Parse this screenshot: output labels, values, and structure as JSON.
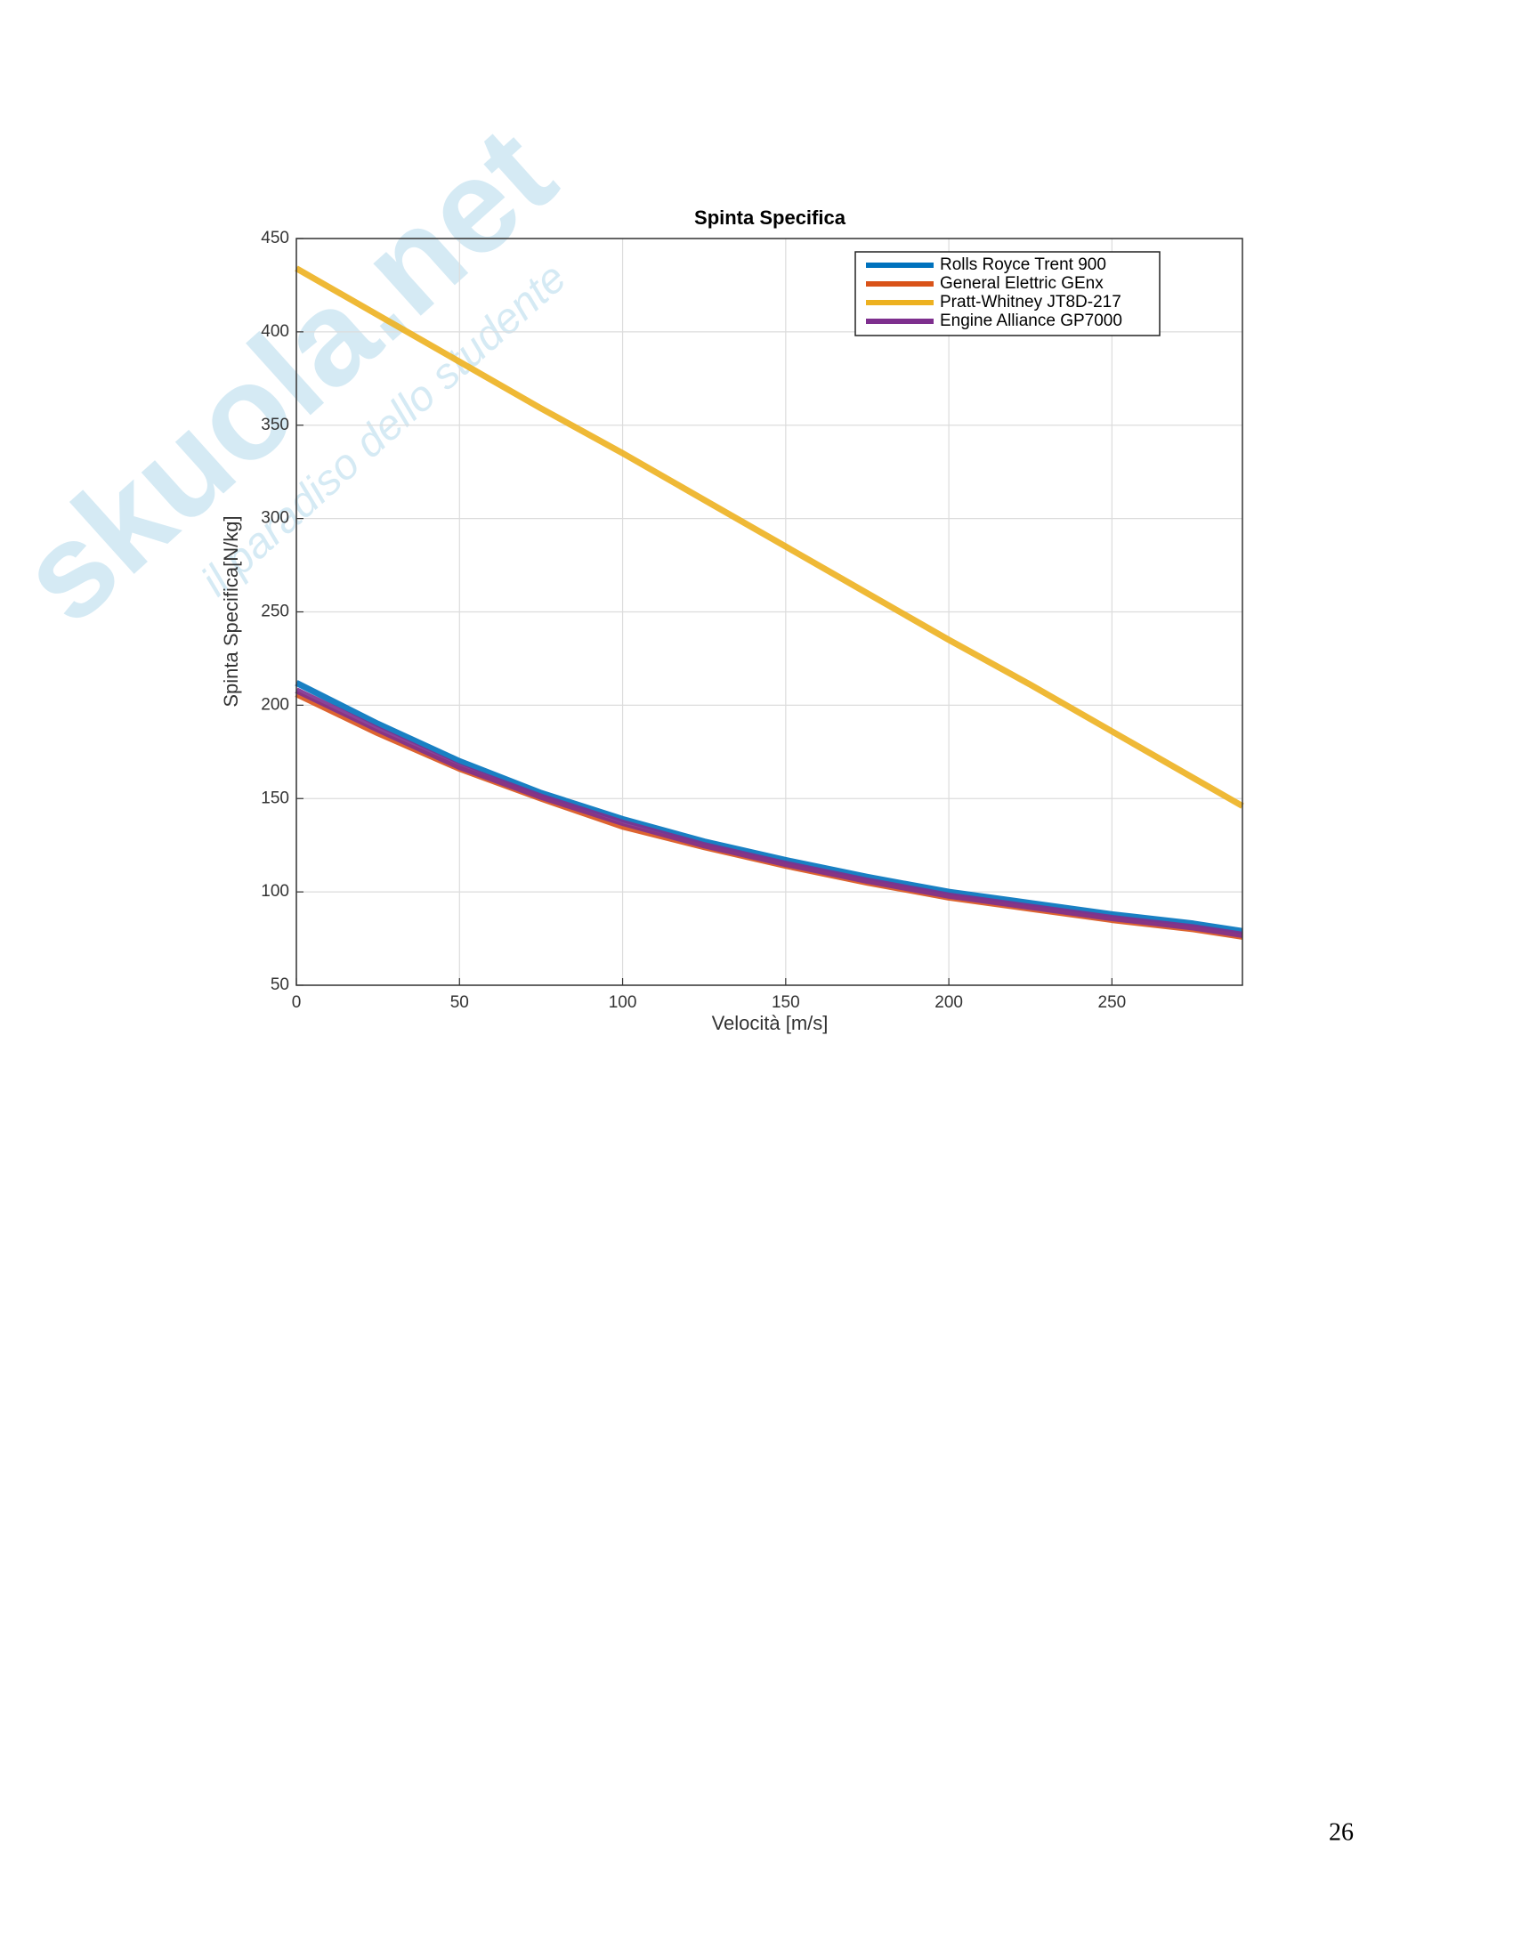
{
  "chart_data": {
    "type": "line",
    "title": "Spinta Specifica",
    "x_label": "Velocità [m/s]",
    "y_label": "Spinta Specifica[N/kg]",
    "x": [
      0,
      25,
      50,
      75,
      100,
      125,
      150,
      175,
      200,
      225,
      250,
      275,
      290
    ],
    "series": [
      {
        "name": "Rolls Royce Trent 900",
        "color": "#0072bd",
        "values": [
          212,
          190,
          170,
          153,
          139,
          127,
          117,
          108,
          100,
          94,
          88,
          83,
          79
        ]
      },
      {
        "name": "General Elettric GEnx",
        "color": "#d95319",
        "values": [
          206,
          185,
          166,
          150,
          135,
          124,
          114,
          105,
          97,
          91,
          85,
          80,
          76
        ]
      },
      {
        "name": "Pratt-Whitney JT8D-217",
        "color": "#edb120",
        "values": [
          434,
          409,
          384,
          359,
          335,
          310,
          285,
          260,
          235,
          211,
          186,
          161,
          146
        ]
      },
      {
        "name": "Engine Alliance GP7000",
        "color": "#7e2f8e",
        "values": [
          208,
          187,
          167,
          151,
          137,
          125,
          115,
          106,
          98,
          92,
          86,
          81,
          77
        ]
      }
    ],
    "xlim": [
      0,
      290
    ],
    "xticks": [
      0,
      50,
      100,
      150,
      200,
      250
    ],
    "ylim": [
      50,
      450
    ],
    "yticks": [
      50,
      100,
      150,
      200,
      250,
      300,
      350,
      400,
      450
    ],
    "grid": true,
    "legend": "top-right"
  },
  "watermark": {
    "logo": "skuola.net",
    "tagline": "il paradiso dello studente"
  },
  "page_number": "26"
}
